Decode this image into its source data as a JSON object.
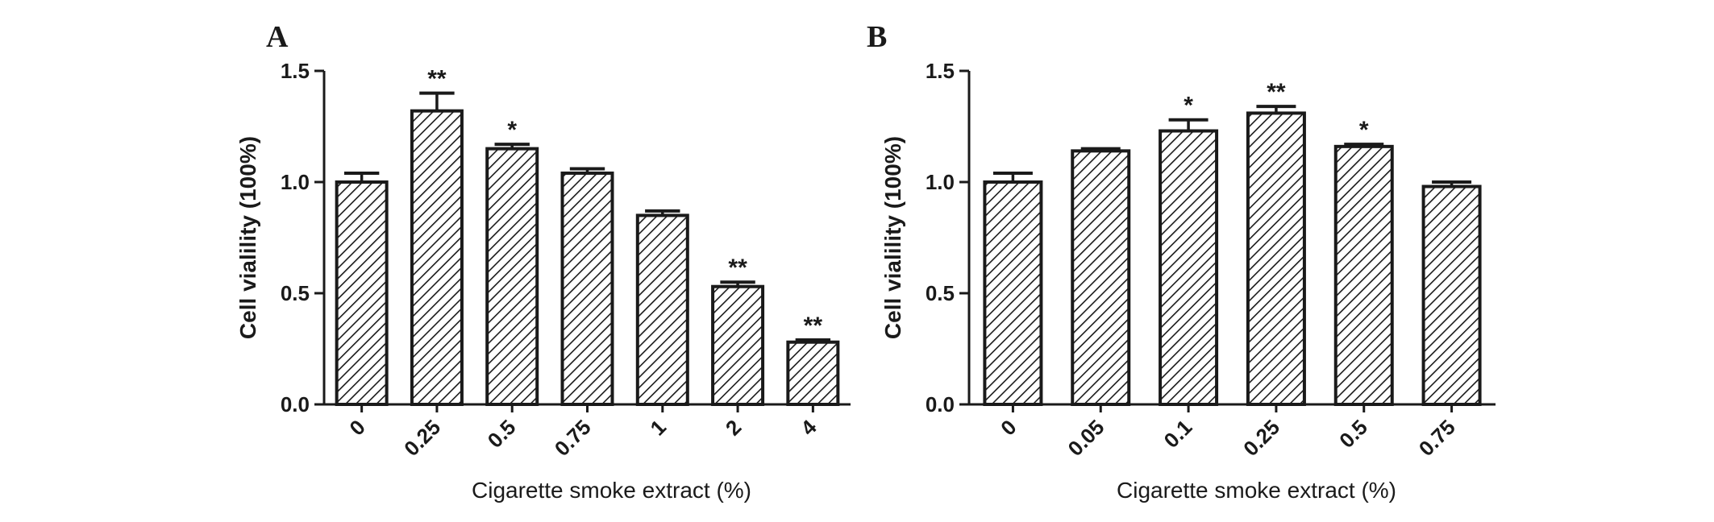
{
  "chart_data": [
    {
      "type": "bar",
      "panel_label": "A",
      "categories": [
        "0",
        "0.25",
        "0.5",
        "0.75",
        "1",
        "2",
        "4"
      ],
      "values": [
        1.0,
        1.32,
        1.15,
        1.04,
        0.85,
        0.53,
        0.28
      ],
      "errors": [
        0.04,
        0.08,
        0.02,
        0.02,
        0.02,
        0.02,
        0.01
      ],
      "annotations": [
        "",
        "**",
        "*",
        "",
        "",
        "**",
        "**"
      ],
      "xlabel": "Cigarette smoke extract (%)",
      "ylabel": "Cell vialility (100%)",
      "ylim": [
        0,
        1.5
      ],
      "yticks": [
        "0.0",
        "0.5",
        "1.0",
        "1.5"
      ],
      "fill": "diagonal hatch",
      "grid": false
    },
    {
      "type": "bar",
      "panel_label": "B",
      "categories": [
        "0",
        "0.05",
        "0.1",
        "0.25",
        "0.5",
        "0.75"
      ],
      "values": [
        1.0,
        1.14,
        1.23,
        1.31,
        1.16,
        0.98
      ],
      "errors": [
        0.04,
        0.01,
        0.05,
        0.03,
        0.01,
        0.02
      ],
      "annotations": [
        "",
        "",
        "*",
        "**",
        "*",
        ""
      ],
      "xlabel": "Cigarette smoke extract (%)",
      "ylabel": "Cell vialility (100%)",
      "ylim": [
        0,
        1.5
      ],
      "yticks": [
        "0.0",
        "0.5",
        "1.0",
        "1.5"
      ],
      "fill": "diagonal hatch",
      "grid": false
    }
  ],
  "colors": {
    "ink": "#1a1a1a",
    "background": "#ffffff"
  }
}
